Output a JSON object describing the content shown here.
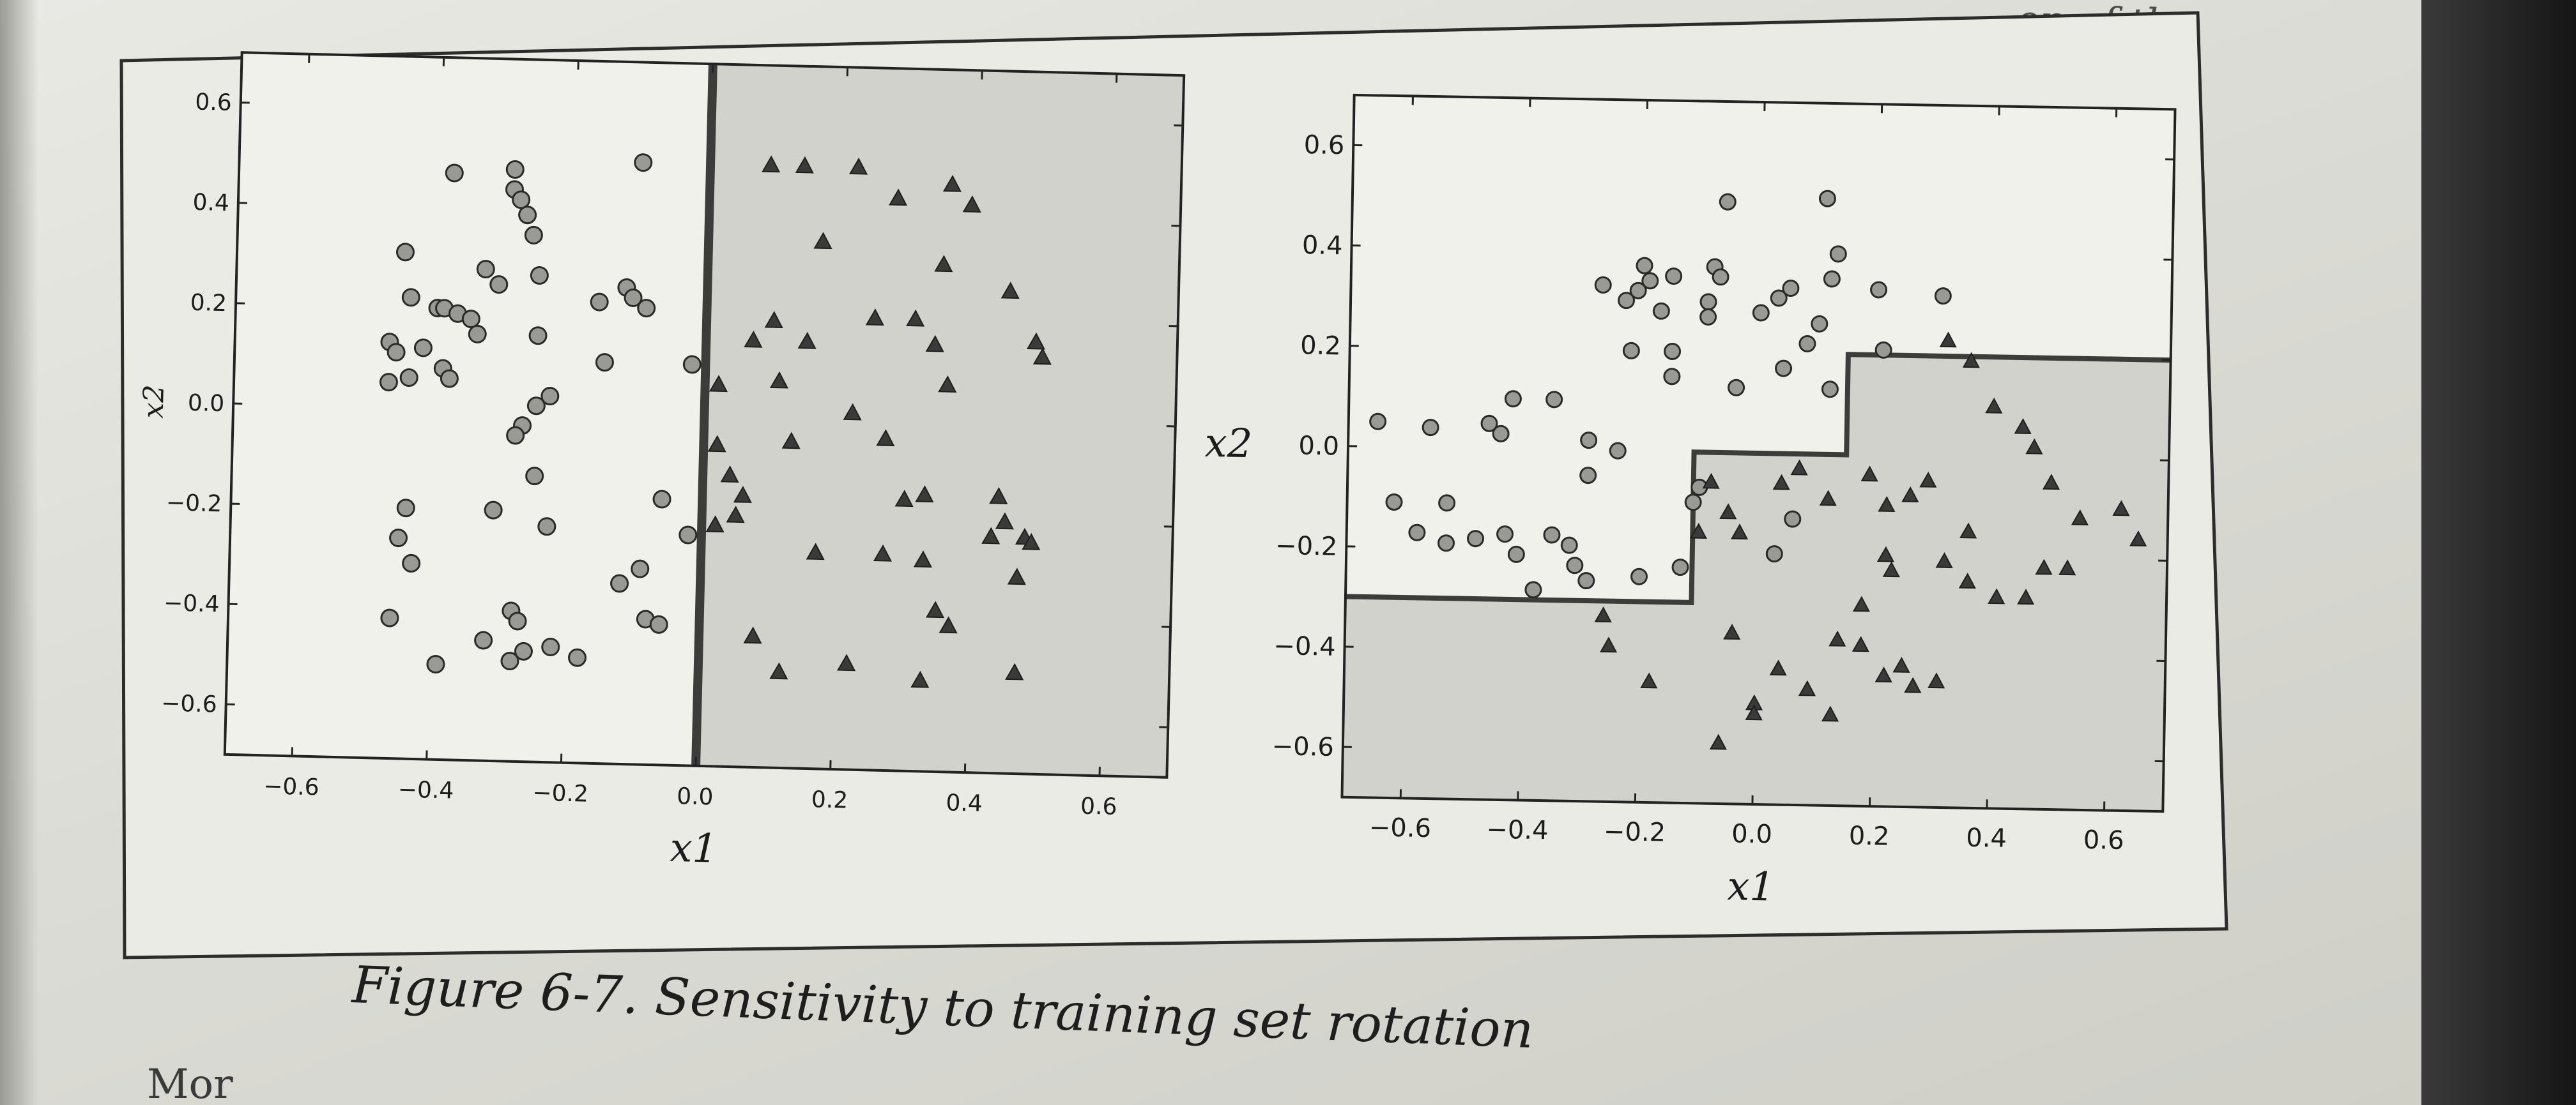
{
  "page": {
    "top_fragment": "on of the",
    "bottom_fragment": "Mor"
  },
  "figure": {
    "caption": "Figure 6-7. Sensitivity to training set rotation"
  },
  "chart_data": [
    {
      "type": "scatter",
      "xlabel": "x1",
      "ylabel": "x2",
      "xlim": [
        -0.7,
        0.7
      ],
      "ylim": [
        -0.7,
        0.7
      ],
      "xticks": [
        "−0.6",
        "−0.4",
        "−0.2",
        "0.0",
        "0.2",
        "0.4",
        "0.6"
      ],
      "yticks": [
        "0.6",
        "0.4",
        "0.2",
        "0.0",
        "−0.2",
        "−0.4",
        "−0.6"
      ],
      "decision_boundary": [
        [
          0.0,
          -0.7
        ],
        [
          0.0,
          0.7
        ]
      ],
      "shaded_region": "x1 > 0",
      "series": [
        {
          "marker": "circle",
          "points": [
            [
              -0.38,
              0.47
            ],
            [
              -0.29,
              0.48
            ],
            [
              -0.1,
              0.5
            ],
            [
              -0.29,
              0.44
            ],
            [
              -0.28,
              0.42
            ],
            [
              -0.27,
              0.39
            ],
            [
              -0.26,
              0.35
            ],
            [
              -0.45,
              0.31
            ],
            [
              -0.33,
              0.28
            ],
            [
              -0.31,
              0.25
            ],
            [
              -0.25,
              0.27
            ],
            [
              -0.44,
              0.22
            ],
            [
              -0.4,
              0.2
            ],
            [
              -0.39,
              0.2
            ],
            [
              -0.37,
              0.19
            ],
            [
              -0.35,
              0.18
            ],
            [
              -0.34,
              0.15
            ],
            [
              -0.12,
              0.25
            ],
            [
              -0.16,
              0.22
            ],
            [
              -0.11,
              0.23
            ],
            [
              -0.09,
              0.21
            ],
            [
              -0.25,
              0.15
            ],
            [
              -0.47,
              0.13
            ],
            [
              -0.46,
              0.11
            ],
            [
              -0.42,
              0.12
            ],
            [
              -0.39,
              0.08
            ],
            [
              -0.38,
              0.06
            ],
            [
              -0.44,
              0.06
            ],
            [
              -0.47,
              0.05
            ],
            [
              -0.15,
              0.1
            ],
            [
              -0.02,
              0.1
            ],
            [
              -0.23,
              0.03
            ],
            [
              -0.25,
              0.01
            ],
            [
              -0.27,
              -0.03
            ],
            [
              -0.28,
              -0.05
            ],
            [
              -0.25,
              -0.13
            ],
            [
              -0.06,
              -0.17
            ],
            [
              -0.31,
              -0.2
            ],
            [
              -0.44,
              -0.2
            ],
            [
              -0.23,
              -0.23
            ],
            [
              -0.02,
              -0.24
            ],
            [
              -0.45,
              -0.26
            ],
            [
              -0.43,
              -0.31
            ],
            [
              -0.09,
              -0.31
            ],
            [
              -0.12,
              -0.34
            ],
            [
              -0.28,
              -0.4
            ],
            [
              -0.27,
              -0.42
            ],
            [
              -0.08,
              -0.41
            ],
            [
              -0.06,
              -0.42
            ],
            [
              -0.46,
              -0.42
            ],
            [
              -0.32,
              -0.46
            ],
            [
              -0.26,
              -0.48
            ],
            [
              -0.22,
              -0.47
            ],
            [
              -0.18,
              -0.49
            ],
            [
              -0.28,
              -0.5
            ],
            [
              -0.39,
              -0.51
            ]
          ]
        },
        {
          "marker": "triangle",
          "points": [
            [
              0.09,
              0.5
            ],
            [
              0.14,
              0.5
            ],
            [
              0.22,
              0.5
            ],
            [
              0.36,
              0.47
            ],
            [
              0.28,
              0.44
            ],
            [
              0.39,
              0.43
            ],
            [
              0.17,
              0.35
            ],
            [
              0.35,
              0.31
            ],
            [
              0.45,
              0.26
            ],
            [
              0.1,
              0.19
            ],
            [
              0.25,
              0.2
            ],
            [
              0.31,
              0.2
            ],
            [
              0.07,
              0.15
            ],
            [
              0.15,
              0.15
            ],
            [
              0.34,
              0.15
            ],
            [
              0.02,
              0.06
            ],
            [
              0.11,
              0.07
            ],
            [
              0.36,
              0.07
            ],
            [
              0.22,
              0.01
            ],
            [
              0.27,
              -0.04
            ],
            [
              0.13,
              -0.05
            ],
            [
              0.02,
              -0.06
            ],
            [
              0.04,
              -0.12
            ],
            [
              0.06,
              -0.16
            ],
            [
              0.05,
              -0.2
            ],
            [
              0.02,
              -0.22
            ],
            [
              0.3,
              -0.16
            ],
            [
              0.33,
              -0.15
            ],
            [
              0.44,
              -0.15
            ],
            [
              0.45,
              -0.2
            ],
            [
              0.43,
              -0.23
            ],
            [
              0.48,
              -0.23
            ],
            [
              0.49,
              -0.24
            ],
            [
              0.17,
              -0.27
            ],
            [
              0.27,
              -0.27
            ],
            [
              0.33,
              -0.28
            ],
            [
              0.47,
              -0.31
            ],
            [
              0.35,
              -0.38
            ],
            [
              0.37,
              -0.41
            ],
            [
              0.08,
              -0.44
            ],
            [
              0.12,
              -0.51
            ],
            [
              0.22,
              -0.49
            ],
            [
              0.33,
              -0.52
            ],
            [
              0.47,
              -0.5
            ],
            [
              0.49,
              0.16
            ],
            [
              0.5,
              0.13
            ]
          ]
        }
      ]
    },
    {
      "type": "scatter",
      "xlabel": "x1",
      "ylabel": "x2",
      "xlim": [
        -0.7,
        0.7
      ],
      "ylim": [
        -0.7,
        0.7
      ],
      "xticks": [
        "−0.6",
        "−0.4",
        "−0.2",
        "0.0",
        "0.2",
        "0.4",
        "0.6"
      ],
      "yticks": [
        "0.6",
        "0.4",
        "0.2",
        "0.0",
        "−0.2",
        "−0.4",
        "−0.6"
      ],
      "decision_boundary": [
        [
          -0.7,
          -0.3
        ],
        [
          -0.11,
          -0.3
        ],
        [
          -0.11,
          0.0
        ],
        [
          0.15,
          0.0
        ],
        [
          0.15,
          0.2
        ],
        [
          0.7,
          0.2
        ]
      ],
      "shaded_region": "below staircase",
      "series": [
        {
          "marker": "circle",
          "points": [
            [
              -0.06,
              0.5
            ],
            [
              0.11,
              0.51
            ],
            [
              -0.2,
              0.37
            ],
            [
              -0.19,
              0.34
            ],
            [
              -0.15,
              0.35
            ],
            [
              -0.08,
              0.37
            ],
            [
              -0.07,
              0.35
            ],
            [
              0.05,
              0.33
            ],
            [
              0.03,
              0.31
            ],
            [
              0.12,
              0.35
            ],
            [
              0.13,
              0.4
            ],
            [
              -0.27,
              0.33
            ],
            [
              -0.21,
              0.32
            ],
            [
              -0.09,
              0.3
            ],
            [
              0.1,
              0.26
            ],
            [
              -0.23,
              0.3
            ],
            [
              -0.17,
              0.28
            ],
            [
              -0.09,
              0.27
            ],
            [
              0.0,
              0.28
            ],
            [
              0.08,
              0.22
            ],
            [
              0.21,
              0.21
            ],
            [
              -0.22,
              0.2
            ],
            [
              -0.15,
              0.15
            ],
            [
              -0.04,
              0.13
            ],
            [
              0.04,
              0.17
            ],
            [
              0.12,
              0.13
            ],
            [
              -0.35,
              0.1
            ],
            [
              -0.44,
              0.03
            ],
            [
              -0.46,
              0.05
            ],
            [
              -0.42,
              0.1
            ],
            [
              -0.24,
              0.0
            ],
            [
              -0.29,
              0.02
            ],
            [
              -0.29,
              -0.05
            ],
            [
              -0.65,
              0.05
            ],
            [
              -0.56,
              0.04
            ],
            [
              -0.53,
              -0.11
            ],
            [
              -0.62,
              -0.11
            ],
            [
              -0.58,
              -0.17
            ],
            [
              -0.53,
              -0.19
            ],
            [
              -0.48,
              -0.18
            ],
            [
              -0.43,
              -0.17
            ],
            [
              -0.41,
              -0.21
            ],
            [
              -0.35,
              -0.17
            ],
            [
              -0.32,
              -0.19
            ],
            [
              -0.31,
              -0.23
            ],
            [
              -0.29,
              -0.26
            ],
            [
              -0.2,
              -0.25
            ],
            [
              -0.13,
              -0.23
            ],
            [
              0.03,
              -0.2
            ],
            [
              0.06,
              -0.13
            ],
            [
              -0.11,
              -0.1
            ],
            [
              -0.1,
              -0.07
            ],
            [
              0.31,
              0.32
            ],
            [
              -0.15,
              0.2
            ],
            [
              -0.38,
              -0.28
            ],
            [
              0.2,
              0.33
            ]
          ]
        },
        {
          "marker": "triangle",
          "points": [
            [
              0.32,
              0.23
            ],
            [
              0.36,
              0.19
            ],
            [
              0.4,
              0.1
            ],
            [
              0.45,
              0.06
            ],
            [
              0.47,
              0.02
            ],
            [
              0.5,
              -0.05
            ],
            [
              0.55,
              -0.12
            ],
            [
              0.62,
              -0.1
            ],
            [
              0.65,
              -0.16
            ],
            [
              0.36,
              -0.15
            ],
            [
              0.32,
              -0.21
            ],
            [
              0.36,
              -0.25
            ],
            [
              0.41,
              -0.28
            ],
            [
              0.46,
              -0.28
            ],
            [
              0.49,
              -0.22
            ],
            [
              0.53,
              -0.22
            ],
            [
              0.29,
              -0.05
            ],
            [
              0.26,
              -0.08
            ],
            [
              0.22,
              -0.1
            ],
            [
              0.22,
              -0.2
            ],
            [
              0.23,
              -0.23
            ],
            [
              0.18,
              -0.3
            ],
            [
              0.14,
              -0.37
            ],
            [
              0.18,
              -0.38
            ],
            [
              0.22,
              -0.44
            ],
            [
              0.25,
              -0.42
            ],
            [
              0.27,
              -0.46
            ],
            [
              0.31,
              -0.45
            ],
            [
              0.13,
              -0.52
            ],
            [
              0.09,
              -0.47
            ],
            [
              0.04,
              -0.43
            ],
            [
              0.0,
              -0.5
            ],
            [
              -0.04,
              -0.36
            ],
            [
              -0.06,
              -0.58
            ],
            [
              -0.18,
              -0.46
            ],
            [
              -0.25,
              -0.39
            ],
            [
              -0.26,
              -0.33
            ],
            [
              -0.08,
              -0.06
            ],
            [
              -0.05,
              -0.12
            ],
            [
              -0.03,
              -0.16
            ],
            [
              0.04,
              -0.06
            ],
            [
              0.07,
              -0.03
            ],
            [
              0.12,
              -0.09
            ],
            [
              0.19,
              -0.04
            ],
            [
              0.0,
              -0.52
            ],
            [
              -0.1,
              -0.16
            ]
          ]
        }
      ]
    }
  ]
}
